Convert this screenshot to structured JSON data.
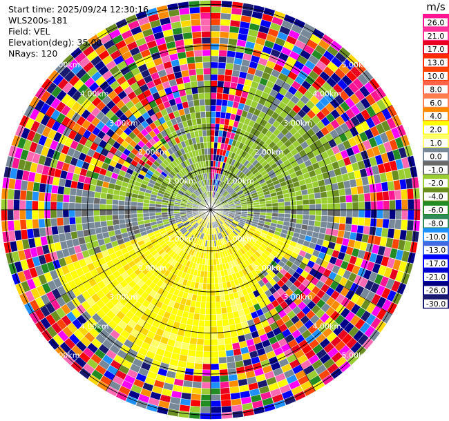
{
  "header": {
    "start_time": "Start time: 2025/09/24 12:30:16",
    "instrument": "WLS200s-181",
    "field": "Field: VEL",
    "elevation": "Elevation(deg): 35.00",
    "nrays": "NRays: 120"
  },
  "chart_data": {
    "type": "heatmap",
    "projection": "polar-ppi",
    "field": "VEL",
    "units": "m/s",
    "range_ring_labels": [
      "1.00km",
      "2.00km",
      "3.00km",
      "4.00km",
      "5.00km"
    ],
    "max_range_km": 5.0,
    "n_rays": 120,
    "grid": true,
    "colorbar": {
      "title": "m/s",
      "tick_labels": [
        "26.0",
        "21.0",
        "17.0",
        "13.0",
        "10.0",
        "8.0",
        "6.0",
        "4.0",
        "2.0",
        "1.0",
        "0.0",
        "-1.0",
        "-2.0",
        "-4.0",
        "-6.0",
        "-8.0",
        "-10.0",
        "-13.0",
        "-17.0",
        "-21.0",
        "-26.0",
        "-30.0"
      ],
      "colors": [
        "#ff1493",
        "#ff3399",
        "#e8001e",
        "#ff2a00",
        "#ff4500",
        "#ff6347",
        "#ff7f50",
        "#ff8c00",
        "#ffff00",
        "#ffff66",
        "#778899",
        "#696969",
        "#9acd32",
        "#6b8e23",
        "#228b22",
        "#2e8b57",
        "#1e90ff",
        "#4169e1",
        "#0000ff",
        "#0000cd",
        "#000080",
        "#191970"
      ]
    },
    "sectors": [
      {
        "from_deg": 0,
        "to_deg": 18,
        "inner": "mixed-blue-red",
        "outer": "noise"
      },
      {
        "from_deg": 18,
        "to_deg": 90,
        "inner": "green",
        "outer": "noise"
      },
      {
        "from_deg": 90,
        "to_deg": 110,
        "inner": "gray",
        "outer": "noise"
      },
      {
        "from_deg": 110,
        "to_deg": 250,
        "inner": "yellow",
        "outer": "noise"
      },
      {
        "from_deg": 250,
        "to_deg": 275,
        "inner": "gray",
        "outer": "noise"
      },
      {
        "from_deg": 275,
        "to_deg": 360,
        "inner": "green",
        "outer": "noise"
      }
    ]
  }
}
